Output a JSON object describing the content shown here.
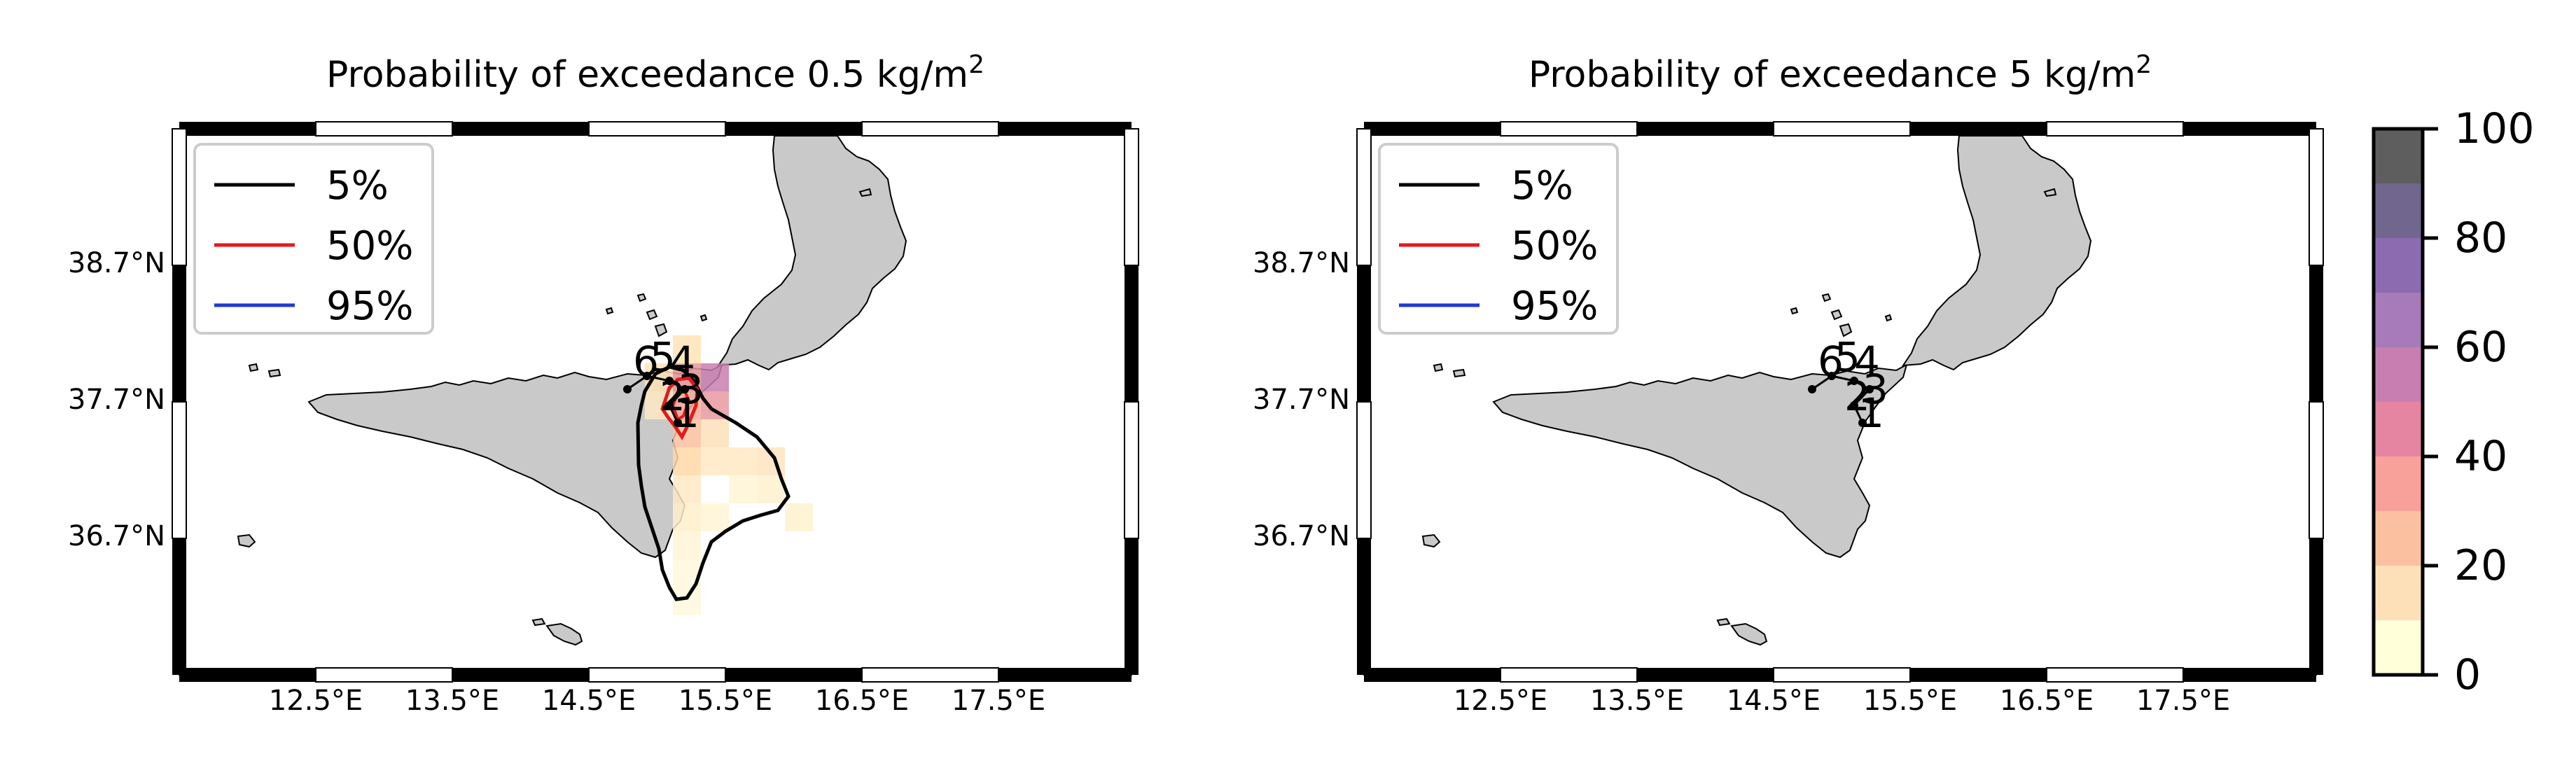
{
  "figure": {
    "panels": [
      {
        "title_prefix": "Probability of exceedance 0.5 kg/m",
        "title_sup": "2",
        "x_ticks": [
          "12.5°E",
          "13.5°E",
          "14.5°E",
          "15.5°E",
          "16.5°E",
          "17.5°E"
        ],
        "y_ticks": [
          "38.7°N",
          "37.7°N",
          "36.7°N"
        ],
        "legend": [
          {
            "label": "5%",
            "color": "#000000"
          },
          {
            "label": "50%",
            "color": "#e31a1c"
          },
          {
            "label": "95%",
            "color": "#1f3ad1"
          }
        ],
        "station_labels": [
          "6",
          "5",
          "4",
          "3",
          "2",
          "1"
        ],
        "has_probability_field": true
      },
      {
        "title_prefix": "Probability of exceedance 5 kg/m",
        "title_sup": "2",
        "x_ticks": [
          "12.5°E",
          "13.5°E",
          "14.5°E",
          "15.5°E",
          "16.5°E",
          "17.5°E"
        ],
        "y_ticks": [
          "38.7°N",
          "37.7°N",
          "36.7°N"
        ],
        "legend": [
          {
            "label": "5%",
            "color": "#000000"
          },
          {
            "label": "50%",
            "color": "#e31a1c"
          },
          {
            "label": "95%",
            "color": "#1f3ad1"
          }
        ],
        "station_labels": [
          "6",
          "5",
          "4",
          "3",
          "2",
          "1"
        ],
        "has_probability_field": false
      }
    ],
    "colorbar": {
      "ticks": [
        "0",
        "20",
        "40",
        "60",
        "80",
        "100"
      ],
      "colors": [
        "#ffffd9",
        "#fde0b8",
        "#fbc0a0",
        "#f8a09a",
        "#e585a1",
        "#c87eb0",
        "#a77ab9",
        "#8c6bb0",
        "#71668e",
        "#5e5e5e"
      ]
    }
  }
}
